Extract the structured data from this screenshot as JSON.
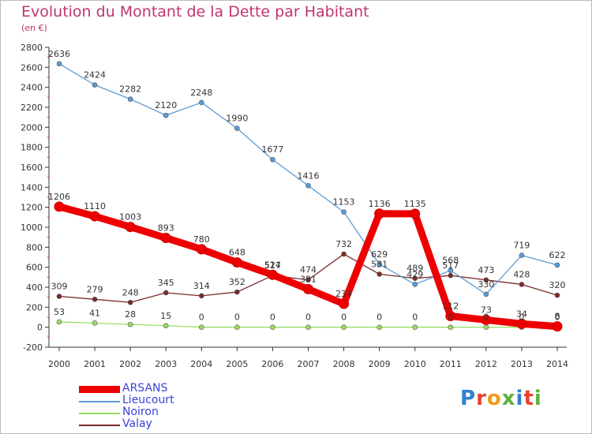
{
  "header": {
    "title": "Evolution du Montant de la Dette par Habitant",
    "subtitle": "(en €)"
  },
  "brand": {
    "letters": [
      "P",
      "r",
      "o",
      "x",
      "i",
      "t",
      "i"
    ],
    "colors": [
      "#2f7fd1",
      "#e8412c",
      "#f29a14",
      "#5ab33d",
      "#2f7fd1",
      "#e8412c",
      "#5ab33d"
    ]
  },
  "colors": {
    "title": "#c0346f",
    "grid": "#dddddd",
    "axis": "#333333",
    "label": "#333333",
    "legend_text": "#3a42d6"
  },
  "chart_data": {
    "type": "line",
    "title": "Evolution du Montant de la Dette par Habitant",
    "subtitle": "(en €)",
    "x": [
      "2000",
      "2001",
      "2002",
      "2003",
      "2004",
      "2005",
      "2006",
      "2007",
      "2008",
      "2009",
      "2010",
      "2011",
      "2012",
      "2013",
      "2014"
    ],
    "ylim": [
      -200,
      2800
    ],
    "yticks": [
      -200,
      0,
      200,
      400,
      600,
      800,
      1000,
      1200,
      1400,
      1600,
      1800,
      2000,
      2200,
      2400,
      2600,
      2800
    ],
    "grid": false,
    "legend_position": "bottom-left",
    "series": [
      {
        "name": "ARSANS",
        "color": "#ee0000",
        "values": [
          1206,
          1110,
          1003,
          893,
          780,
          648,
          524,
          381,
          234,
          1136,
          1135,
          112,
          73,
          34,
          8
        ]
      },
      {
        "name": "Lieucourt",
        "color": "#5b9bd5",
        "values": [
          2636,
          2424,
          2282,
          2120,
          2248,
          1990,
          1677,
          1416,
          1153,
          629,
          429,
          568,
          330,
          719,
          622
        ]
      },
      {
        "name": "Noiron",
        "color": "#99dd66",
        "values": [
          53,
          41,
          28,
          15,
          0,
          0,
          0,
          0,
          0,
          0,
          0,
          0,
          0,
          0,
          0
        ]
      },
      {
        "name": "Valay",
        "color": "#7a2a2a",
        "values": [
          309,
          279,
          248,
          345,
          314,
          352,
          517,
          474,
          732,
          531,
          489,
          517,
          473,
          428,
          320
        ]
      }
    ]
  }
}
